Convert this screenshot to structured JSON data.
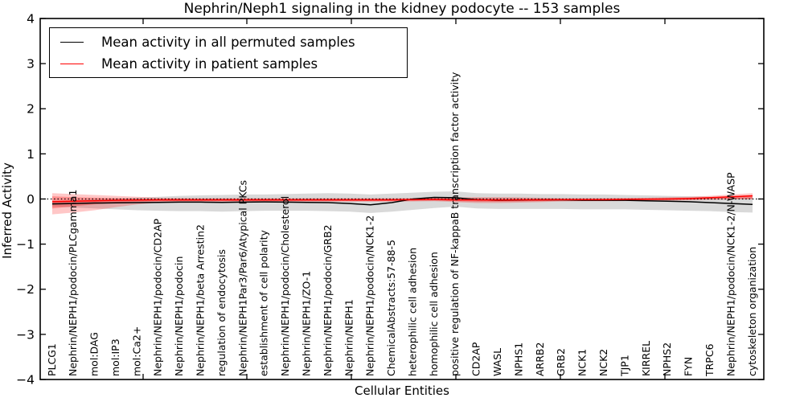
{
  "title": "Nephrin/Neph1 signaling in the kidney podocyte -- 153 samples",
  "chart_data": {
    "type": "line",
    "title": "Nephrin/Neph1 signaling in the kidney podocyte -- 153 samples",
    "xlabel": "Cellular Entities",
    "ylabel": "Inferred Activity",
    "ylim": [
      -4,
      4
    ],
    "yticks": [
      4,
      3,
      2,
      1,
      0,
      -1,
      -2,
      -3,
      -4
    ],
    "grid": false,
    "zero_line": "dotted",
    "legend_position": "upper left",
    "categories": [
      "PLCG1",
      "Nephrin/NEPH1/podocin/PLCgamma1",
      "mol:DAG",
      "mol:IP3",
      "mol:Ca2+",
      "Nephrin/NEPH1/podocin/CD2AP",
      "Nephrin/NEPH1/podocin",
      "Nephrin/NEPH1/beta Arrestin2",
      "regulation of endocytosis",
      "Nephrin/NEPH1Par3/Par6/Atypical PKCs",
      "establishment of cell polarity",
      "Nephrin/NEPH1/podocin/Cholesterol",
      "Nephrin/NEPH1/ZO-1",
      "Nephrin/NEPH1/podocin/GRB2",
      "Nephrin/NEPH1",
      "Nephrin/NEPH1/podocin/NCK1-2",
      "ChemicalAbstracts:57-88-5",
      "heterophilic cell adhesion",
      "homophilic cell adhesion",
      "positive regulation of NF-kappaB transcription factor activity",
      "CD2AP",
      "WASL",
      "NPHS1",
      "ARRB2",
      "GRB2",
      "NCK1",
      "NCK2",
      "TJP1",
      "KIRREL",
      "NPHS2",
      "FYN",
      "TRPC6",
      "Nephrin/NEPH1/podocin/NCK1-2/N-WASP",
      "cytoskeleton organization"
    ],
    "series": [
      {
        "id": "permuted",
        "name": "Mean activity in all permuted samples",
        "color": "#000000",
        "values": [
          -0.11,
          -0.1,
          -0.09,
          -0.085,
          -0.08,
          -0.075,
          -0.07,
          -0.07,
          -0.075,
          -0.07,
          -0.065,
          -0.07,
          -0.075,
          -0.08,
          -0.1,
          -0.13,
          -0.08,
          0.0,
          0.035,
          0.03,
          -0.015,
          -0.03,
          -0.025,
          -0.02,
          -0.02,
          -0.03,
          -0.03,
          -0.03,
          -0.04,
          -0.05,
          -0.06,
          -0.08,
          -0.1,
          -0.12
        ],
        "bands": [
          {
            "fill": "rgba(0,0,0,0.15)",
            "top": [
              -0.05,
              -0.03,
              -0.01,
              0.01,
              0.03,
              0.05,
              0.07,
              0.08,
              0.09,
              0.1,
              0.1,
              0.11,
              0.12,
              0.13,
              0.12,
              0.1,
              0.12,
              0.14,
              0.16,
              0.17,
              0.13,
              0.12,
              0.12,
              0.11,
              0.11,
              0.1,
              0.1,
              0.09,
              0.08,
              0.07,
              0.06,
              0.05,
              0.04,
              0.04
            ],
            "bottom": [
              -0.17,
              -0.19,
              -0.21,
              -0.23,
              -0.25,
              -0.26,
              -0.27,
              -0.27,
              -0.28,
              -0.27,
              -0.26,
              -0.26,
              -0.26,
              -0.27,
              -0.28,
              -0.31,
              -0.28,
              -0.24,
              -0.2,
              -0.17,
              -0.21,
              -0.22,
              -0.22,
              -0.22,
              -0.22,
              -0.23,
              -0.23,
              -0.23,
              -0.24,
              -0.25,
              -0.26,
              -0.27,
              -0.29,
              -0.3
            ]
          }
        ]
      },
      {
        "id": "patient",
        "name": "Mean activity in patient samples",
        "color": "#ff0000",
        "values": [
          -0.06,
          -0.05,
          -0.04,
          -0.03,
          -0.025,
          -0.02,
          -0.02,
          -0.02,
          -0.02,
          -0.02,
          -0.02,
          -0.02,
          -0.02,
          -0.02,
          -0.02,
          -0.02,
          -0.02,
          -0.015,
          -0.01,
          -0.02,
          -0.02,
          -0.025,
          -0.02,
          -0.02,
          -0.015,
          -0.015,
          -0.015,
          -0.01,
          -0.005,
          0.0,
          0.01,
          0.03,
          0.05,
          0.07
        ],
        "bands": [
          {
            "fill": "rgba(255,0,0,0.22)",
            "top": [
              0.13,
              0.11,
              0.09,
              0.07,
              0.05,
              0.03,
              0.025,
              0.02,
              0.02,
              0.02,
              0.02,
              0.02,
              0.02,
              0.02,
              0.02,
              0.02,
              0.02,
              0.02,
              0.025,
              0.035,
              0.04,
              0.04,
              0.035,
              0.03,
              0.02,
              0.02,
              0.02,
              0.025,
              0.03,
              0.04,
              0.05,
              0.07,
              0.1,
              0.13
            ],
            "bottom": [
              -0.34,
              -0.3,
              -0.25,
              -0.18,
              -0.12,
              -0.08,
              -0.07,
              -0.065,
              -0.06,
              -0.06,
              -0.06,
              -0.06,
              -0.06,
              -0.06,
              -0.06,
              -0.06,
              -0.06,
              -0.055,
              -0.05,
              -0.07,
              -0.09,
              -0.09,
              -0.08,
              -0.07,
              -0.055,
              -0.05,
              -0.05,
              -0.045,
              -0.04,
              -0.04,
              -0.03,
              -0.02,
              -0.01,
              -0.01
            ]
          },
          {
            "fill": "rgba(255,0,0,0.28)",
            "top": [
              0.06,
              0.04,
              0.03,
              0.02,
              0.01,
              0.005,
              0.005,
              0.005,
              0.005,
              0.005,
              0.005,
              0.005,
              0.005,
              0.005,
              0.005,
              0.005,
              0.005,
              0.005,
              0.01,
              0.015,
              0.02,
              0.02,
              0.015,
              0.01,
              0.005,
              0.005,
              0.005,
              0.01,
              0.015,
              0.02,
              0.03,
              0.04,
              0.06,
              0.09
            ],
            "bottom": [
              -0.21,
              -0.16,
              -0.12,
              -0.08,
              -0.06,
              -0.05,
              -0.045,
              -0.045,
              -0.045,
              -0.045,
              -0.045,
              -0.045,
              -0.045,
              -0.045,
              -0.045,
              -0.045,
              -0.045,
              -0.04,
              -0.035,
              -0.05,
              -0.06,
              -0.06,
              -0.055,
              -0.05,
              -0.04,
              -0.04,
              -0.04,
              -0.035,
              -0.03,
              -0.025,
              -0.02,
              -0.01,
              0.0,
              0.0
            ]
          }
        ]
      }
    ]
  }
}
